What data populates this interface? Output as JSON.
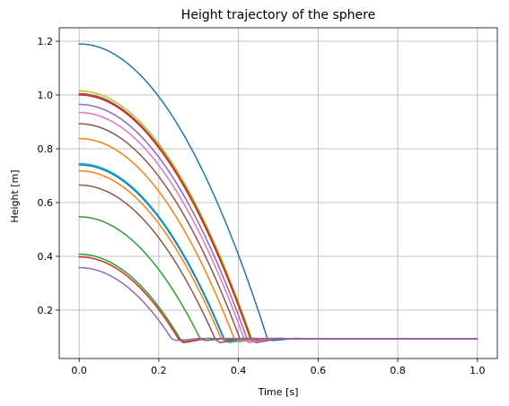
{
  "chart_data": {
    "type": "line",
    "title": "Height trajectory of the sphere",
    "xlabel": "Time [s]",
    "ylabel": "Height [m]",
    "xlim": [
      -0.05,
      1.05
    ],
    "ylim": [
      0.02,
      1.25
    ],
    "xticks": [
      0.0,
      0.2,
      0.4,
      0.6,
      0.8,
      1.0
    ],
    "xtick_labels": [
      "0.0",
      "0.2",
      "0.4",
      "0.6",
      "0.8",
      "1.0"
    ],
    "yticks": [
      0.2,
      0.4,
      0.6,
      0.8,
      1.0,
      1.2
    ],
    "ytick_labels": [
      "0.2",
      "0.4",
      "0.6",
      "0.8",
      "1.0",
      "1.2"
    ],
    "grid": true,
    "g": 9.81,
    "t_end": 1.0,
    "rest_level": 0.093,
    "series": [
      {
        "h0": 1.19,
        "color": "#1f77b4"
      },
      {
        "h0": 1.015,
        "color": "#bcbd22"
      },
      {
        "h0": 1.005,
        "color": "#8c564b"
      },
      {
        "h0": 1.0,
        "color": "#d62728"
      },
      {
        "h0": 0.965,
        "color": "#9467bd"
      },
      {
        "h0": 0.935,
        "color": "#e377c2"
      },
      {
        "h0": 0.893,
        "color": "#8c564b"
      },
      {
        "h0": 0.838,
        "color": "#ff7f0e"
      },
      {
        "h0": 0.745,
        "color": "#17becf"
      },
      {
        "h0": 0.74,
        "color": "#1f77b4"
      },
      {
        "h0": 0.718,
        "color": "#ff7f0e"
      },
      {
        "h0": 0.665,
        "color": "#8c564b"
      },
      {
        "h0": 0.547,
        "color": "#2ca02c"
      },
      {
        "h0": 0.408,
        "color": "#2ca02c"
      },
      {
        "h0": 0.398,
        "color": "#d62728"
      },
      {
        "h0": 0.358,
        "color": "#9467bd"
      }
    ]
  }
}
